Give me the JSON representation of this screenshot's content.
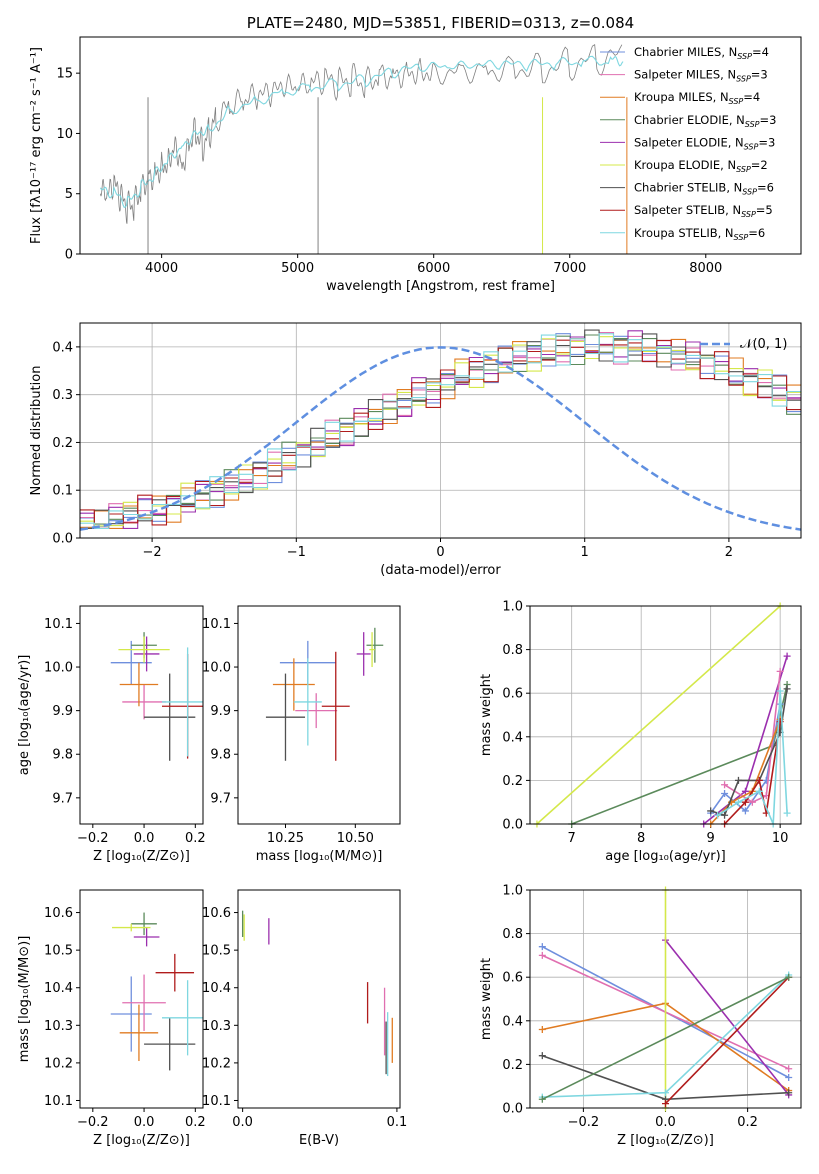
{
  "colors": {
    "Chabrier MILES": "#6f8fdd",
    "Salpeter MILES": "#e06fb0",
    "Kroupa MILES": "#e07b22",
    "Chabrier ELODIE": "#5b8a5b",
    "Salpeter ELODIE": "#9b2fae",
    "Kroupa ELODIE": "#d4e84a",
    "Chabrier STELIB": "#505050",
    "Salpeter STELIB": "#b01c1c",
    "Kroupa STELIB": "#7fd7e0"
  },
  "models": [
    "Chabrier MILES",
    "Salpeter MILES",
    "Kroupa MILES",
    "Chabrier ELODIE",
    "Salpeter ELODIE",
    "Kroupa ELODIE",
    "Chabrier STELIB",
    "Salpeter STELIB",
    "Kroupa STELIB"
  ],
  "chart_data": [
    {
      "id": "spectrum",
      "type": "line",
      "title": "PLATE=2480, MJD=53851, FIBERID=0313, z=0.084",
      "xlabel": "wavelength [Angstrom, rest frame]",
      "ylabel": "Flux [fλ10⁻¹⁷ erg cm⁻² s⁻¹ A⁻¹]",
      "xlim": [
        3400,
        8700
      ],
      "ylim": [
        0,
        18
      ],
      "xticks": [
        4000,
        5000,
        6000,
        7000,
        8000
      ],
      "yticks": [
        0,
        5,
        10,
        15
      ],
      "grid": false,
      "legend_position": "right",
      "legend": [
        {
          "model": "Chabrier MILES",
          "label": "Chabrier MILES, N",
          "sub": "SSP",
          "eq": "=4"
        },
        {
          "model": "Salpeter MILES",
          "label": "Salpeter MILES, N",
          "sub": "SSP",
          "eq": "=3"
        },
        {
          "model": "Kroupa MILES",
          "label": "Kroupa MILES, N",
          "sub": "SSP",
          "eq": "=4"
        },
        {
          "model": "Chabrier ELODIE",
          "label": "Chabrier ELODIE, N",
          "sub": "SSP",
          "eq": "=3"
        },
        {
          "model": "Salpeter ELODIE",
          "label": "Salpeter ELODIE, N",
          "sub": "SSP",
          "eq": "=3"
        },
        {
          "model": "Kroupa ELODIE",
          "label": "Kroupa ELODIE, N",
          "sub": "SSP",
          "eq": "=2"
        },
        {
          "model": "Chabrier STELIB",
          "label": "Chabrier STELIB, N",
          "sub": "SSP",
          "eq": "=6"
        },
        {
          "model": "Salpeter STELIB",
          "label": "Salpeter STELIB, N",
          "sub": "SSP",
          "eq": "=5"
        },
        {
          "model": "Kroupa STELIB",
          "label": "Kroupa STELIB, N",
          "sub": "SSP",
          "eq": "=6"
        }
      ],
      "series": [
        {
          "name": "data",
          "color": "#808080",
          "x": [
            3550,
            3600,
            3650,
            3700,
            3750,
            3800,
            3850,
            3900,
            3950,
            4000,
            4050,
            4100,
            4150,
            4200,
            4250,
            4300,
            4350,
            4400,
            4500,
            4600,
            4700,
            4800,
            4900,
            5000,
            5100,
            5200,
            5300,
            5400,
            5500,
            5600,
            5700,
            5800,
            5900,
            6000,
            6200,
            6400,
            6600,
            6800,
            7000,
            7200,
            7400
          ],
          "y": [
            5.0,
            4.5,
            5.5,
            4.5,
            3.8,
            4.2,
            5.5,
            6.5,
            6.8,
            7.5,
            8.0,
            9.5,
            7.5,
            9.5,
            10.5,
            9.0,
            10.0,
            11.0,
            12.0,
            12.5,
            12.8,
            13.0,
            13.5,
            13.5,
            13.8,
            14.2,
            14.0,
            14.5,
            14.3,
            15.0,
            15.0,
            15.3,
            15.5,
            15.3,
            15.6,
            15.5,
            15.7,
            15.5,
            15.8,
            16.0,
            16.2
          ]
        },
        {
          "name": "model",
          "color": "#7fd7e0",
          "x": [
            3550,
            3650,
            3750,
            3850,
            3950,
            4050,
            4150,
            4250,
            4350,
            4500,
            4700,
            4900,
            5100,
            5300,
            5500,
            5700,
            5900,
            6100,
            6300,
            6500,
            6700,
            6900,
            7100,
            7300,
            7400
          ],
          "y": [
            5.2,
            5.0,
            4.2,
            5.6,
            6.7,
            8.0,
            9.0,
            10.2,
            10.4,
            12.0,
            12.8,
            13.5,
            13.9,
            14.1,
            14.4,
            15.0,
            15.4,
            15.4,
            15.5,
            15.6,
            15.6,
            15.7,
            15.9,
            16.0,
            16.1
          ]
        }
      ]
    },
    {
      "id": "residuals",
      "type": "bar",
      "xlabel": "(data-model)/error",
      "ylabel": "Normed distribution",
      "xlim": [
        -2.5,
        2.5
      ],
      "ylim": [
        0,
        0.45
      ],
      "xticks": [
        -2,
        -1,
        0,
        1,
        2
      ],
      "yticks": [
        0.0,
        0.1,
        0.2,
        0.3,
        0.4
      ],
      "grid": true,
      "legend": [
        {
          "label": "𝒩(0, 1)",
          "style": "dashed"
        }
      ],
      "bin_width": 0.1,
      "bin_start": -2.5,
      "values": [
        0.03,
        0.03,
        0.04,
        0.05,
        0.055,
        0.06,
        0.07,
        0.08,
        0.09,
        0.1,
        0.11,
        0.12,
        0.135,
        0.15,
        0.165,
        0.18,
        0.195,
        0.21,
        0.225,
        0.24,
        0.255,
        0.27,
        0.285,
        0.3,
        0.31,
        0.325,
        0.34,
        0.35,
        0.36,
        0.37,
        0.38,
        0.385,
        0.39,
        0.395,
        0.4,
        0.4,
        0.4,
        0.4,
        0.4,
        0.395,
        0.39,
        0.385,
        0.375,
        0.365,
        0.355,
        0.34,
        0.33,
        0.32,
        0.305,
        0.29
      ]
    },
    {
      "id": "age_vs_Z",
      "type": "scatter",
      "xlabel": "Z [log₁₀(Z/Z⊙)]",
      "ylabel": "age  [log₁₀(age/yr)]",
      "xlim": [
        -0.25,
        0.23
      ],
      "ylim": [
        9.64,
        10.14
      ],
      "xticks": [
        -0.2,
        0.0,
        0.2
      ],
      "xtick_labels": [
        "−0.2",
        "0.0",
        "0.2"
      ],
      "yticks": [
        9.7,
        9.8,
        9.9,
        10.0,
        10.1
      ],
      "points": [
        {
          "model": "Chabrier MILES",
          "x": -0.05,
          "y": 10.01,
          "xerr": 0.16,
          "yerr": 0.1
        },
        {
          "model": "Salpeter MILES",
          "x": 0.0,
          "y": 9.92,
          "xerr": 0.17,
          "yerr": 0.08
        },
        {
          "model": "Kroupa MILES",
          "x": -0.02,
          "y": 9.96,
          "xerr": 0.15,
          "yerr": 0.1
        },
        {
          "model": "Chabrier ELODIE",
          "x": 0.0,
          "y": 10.05,
          "xerr": 0.1,
          "yerr": 0.06
        },
        {
          "model": "Salpeter ELODIE",
          "x": 0.01,
          "y": 10.03,
          "xerr": 0.1,
          "yerr": 0.08
        },
        {
          "model": "Kroupa ELODIE",
          "x": 0.0,
          "y": 10.04,
          "xerr": 0.2,
          "yerr": 0.06
        },
        {
          "model": "Chabrier STELIB",
          "x": 0.1,
          "y": 9.885,
          "xerr": 0.2,
          "yerr": 0.2
        },
        {
          "model": "Salpeter STELIB",
          "x": 0.17,
          "y": 9.91,
          "xerr": 0.2,
          "yerr": 0.24
        },
        {
          "model": "Kroupa STELIB",
          "x": 0.17,
          "y": 9.92,
          "xerr": 0.2,
          "yerr": 0.25
        }
      ]
    },
    {
      "id": "age_vs_mass",
      "type": "scatter",
      "xlabel": "mass [log₁₀(M/M⊙)]",
      "xlim": [
        10.08,
        10.66
      ],
      "ylim": [
        9.64,
        10.14
      ],
      "xticks": [
        10.25,
        10.5
      ],
      "xtick_labels": [
        "10.25",
        "10.50"
      ],
      "yticks": [
        9.7,
        9.8,
        9.9,
        10.0,
        10.1
      ],
      "points": [
        {
          "model": "Chabrier MILES",
          "x": 10.33,
          "y": 10.01,
          "xerr": 0.2,
          "yerr": 0.1
        },
        {
          "model": "Salpeter MILES",
          "x": 10.36,
          "y": 9.9,
          "xerr": 0.15,
          "yerr": 0.08
        },
        {
          "model": "Kroupa MILES",
          "x": 10.28,
          "y": 9.96,
          "xerr": 0.15,
          "yerr": 0.12
        },
        {
          "model": "Chabrier ELODIE",
          "x": 10.57,
          "y": 10.05,
          "xerr": 0.06,
          "yerr": 0.08
        },
        {
          "model": "Salpeter ELODIE",
          "x": 10.53,
          "y": 10.03,
          "xerr": 0.05,
          "yerr": 0.1
        },
        {
          "model": "Kroupa ELODIE",
          "x": 10.56,
          "y": 10.04,
          "xerr": 0.02,
          "yerr": 0.08
        },
        {
          "model": "Chabrier STELIB",
          "x": 10.25,
          "y": 9.885,
          "xerr": 0.14,
          "yerr": 0.2
        },
        {
          "model": "Salpeter STELIB",
          "x": 10.43,
          "y": 9.91,
          "xerr": 0.1,
          "yerr": 0.25
        },
        {
          "model": "Kroupa STELIB",
          "x": 10.33,
          "y": 9.92,
          "xerr": 0.1,
          "yerr": 0.2
        }
      ]
    },
    {
      "id": "mass_weight_vs_age",
      "type": "line",
      "xlabel": "age  [log₁₀(age/yr)]",
      "ylabel": "mass weight",
      "xlim": [
        6.4,
        10.3
      ],
      "ylim": [
        0,
        1.0
      ],
      "xticks": [
        7,
        8,
        9,
        10
      ],
      "yticks": [
        0.0,
        0.2,
        0.4,
        0.6,
        0.8,
        1.0
      ],
      "grid": true,
      "series": [
        {
          "model": "Kroupa ELODIE",
          "x": [
            6.5,
            10.0
          ],
          "y": [
            0.0,
            1.0
          ]
        },
        {
          "model": "Chabrier ELODIE",
          "x": [
            7.0,
            9.9,
            10.1
          ],
          "y": [
            0.0,
            0.36,
            0.64
          ]
        },
        {
          "model": "Salpeter ELODIE",
          "x": [
            8.9,
            9.5,
            10.1
          ],
          "y": [
            0.0,
            0.15,
            0.77
          ]
        },
        {
          "model": "Chabrier MILES",
          "x": [
            9.0,
            9.2,
            9.5,
            9.8,
            10.0
          ],
          "y": [
            0.05,
            0.14,
            0.06,
            0.2,
            0.55
          ]
        },
        {
          "model": "Salpeter MILES",
          "x": [
            9.2,
            9.6,
            9.8,
            10.0
          ],
          "y": [
            0.18,
            0.1,
            0.13,
            0.7
          ]
        },
        {
          "model": "Kroupa MILES",
          "x": [
            9.0,
            9.3,
            9.6,
            10.0
          ],
          "y": [
            0.0,
            0.1,
            0.15,
            0.48
          ]
        },
        {
          "model": "Chabrier STELIB",
          "x": [
            9.0,
            9.2,
            9.4,
            9.7,
            10.0,
            10.1
          ],
          "y": [
            0.06,
            0.04,
            0.2,
            0.2,
            0.42,
            0.62
          ]
        },
        {
          "model": "Salpeter STELIB",
          "x": [
            9.2,
            9.5,
            9.7,
            9.8,
            10.0
          ],
          "y": [
            0.0,
            0.1,
            0.2,
            0.05,
            0.47
          ]
        },
        {
          "model": "Kroupa STELIB",
          "x": [
            9.1,
            9.4,
            9.7,
            9.9,
            10.0,
            10.1
          ],
          "y": [
            0.04,
            0.1,
            0.15,
            0.0,
            0.61,
            0.05
          ]
        }
      ]
    },
    {
      "id": "mass_vs_Z",
      "type": "scatter",
      "xlabel": "Z [log₁₀(Z/Z⊙)]",
      "ylabel": "mass [log₁₀(M/M⊙)]",
      "xlim": [
        -0.25,
        0.23
      ],
      "ylim": [
        10.08,
        10.66
      ],
      "xticks": [
        -0.2,
        0.0,
        0.2
      ],
      "xtick_labels": [
        "−0.2",
        "0.0",
        "0.2"
      ],
      "yticks": [
        10.1,
        10.2,
        10.3,
        10.4,
        10.5,
        10.6
      ],
      "points": [
        {
          "model": "Chabrier MILES",
          "x": -0.05,
          "y": 10.33,
          "xerr": 0.16,
          "yerr": 0.2
        },
        {
          "model": "Salpeter MILES",
          "x": 0.0,
          "y": 10.36,
          "xerr": 0.17,
          "yerr": 0.15
        },
        {
          "model": "Kroupa MILES",
          "x": -0.02,
          "y": 10.28,
          "xerr": 0.15,
          "yerr": 0.15
        },
        {
          "model": "Chabrier ELODIE",
          "x": 0.0,
          "y": 10.57,
          "xerr": 0.1,
          "yerr": 0.06
        },
        {
          "model": "Salpeter ELODIE",
          "x": 0.01,
          "y": 10.535,
          "xerr": 0.1,
          "yerr": 0.05
        },
        {
          "model": "Kroupa ELODIE",
          "x": -0.05,
          "y": 10.56,
          "xerr": 0.15,
          "yerr": 0.02
        },
        {
          "model": "Chabrier STELIB",
          "x": 0.1,
          "y": 10.25,
          "xerr": 0.2,
          "yerr": 0.14
        },
        {
          "model": "Salpeter STELIB",
          "x": 0.12,
          "y": 10.44,
          "xerr": 0.15,
          "yerr": 0.1
        },
        {
          "model": "Kroupa STELIB",
          "x": 0.17,
          "y": 10.32,
          "xerr": 0.2,
          "yerr": 0.2
        }
      ]
    },
    {
      "id": "mass_vs_EBV",
      "type": "scatter",
      "xlabel": "E(B-V)",
      "xlim": [
        -0.003,
        0.102
      ],
      "ylim": [
        10.08,
        10.66
      ],
      "xticks": [
        0.0,
        0.1
      ],
      "xtick_labels": [
        "0.0",
        "0.1"
      ],
      "yticks": [
        10.1,
        10.2,
        10.3,
        10.4,
        10.5,
        10.6
      ],
      "points": [
        {
          "model": "Chabrier ELODIE",
          "x": 0.0,
          "y": 10.57,
          "xerr": 0,
          "yerr": 0.07
        },
        {
          "model": "Salpeter ELODIE",
          "x": 0.017,
          "y": 10.55,
          "xerr": 0,
          "yerr": 0.07
        },
        {
          "model": "Kroupa ELODIE",
          "x": 0.001,
          "y": 10.56,
          "xerr": 0,
          "yerr": 0.07
        },
        {
          "model": "Salpeter STELIB",
          "x": 0.081,
          "y": 10.36,
          "xerr": 0,
          "yerr": 0.11
        },
        {
          "model": "Salpeter MILES",
          "x": 0.092,
          "y": 10.31,
          "xerr": 0,
          "yerr": 0.18
        },
        {
          "model": "Chabrier STELIB",
          "x": 0.093,
          "y": 10.24,
          "xerr": 0,
          "yerr": 0.14
        },
        {
          "model": "Kroupa STELIB",
          "x": 0.094,
          "y": 10.25,
          "xerr": 0,
          "yerr": 0.17
        },
        {
          "model": "Kroupa MILES",
          "x": 0.097,
          "y": 10.26,
          "xerr": 0,
          "yerr": 0.12
        }
      ]
    },
    {
      "id": "mass_weight_vs_Z",
      "type": "line",
      "xlabel": "Z [log₁₀(Z/Z⊙)]",
      "ylabel": "mass weight",
      "xlim": [
        -0.33,
        0.33
      ],
      "ylim": [
        0,
        1.0
      ],
      "xticks": [
        -0.2,
        0.0,
        0.2
      ],
      "xtick_labels": [
        "−0.2",
        "0.0",
        "0.2"
      ],
      "yticks": [
        0.0,
        0.2,
        0.4,
        0.6,
        0.8,
        1.0
      ],
      "grid": true,
      "series": [
        {
          "model": "Chabrier MILES",
          "x": [
            -0.3,
            0.3
          ],
          "y": [
            0.74,
            0.14
          ]
        },
        {
          "model": "Salpeter MILES",
          "x": [
            -0.3,
            0.3
          ],
          "y": [
            0.7,
            0.18
          ]
        },
        {
          "model": "Kroupa MILES",
          "x": [
            -0.3,
            0.0,
            0.3
          ],
          "y": [
            0.36,
            0.48,
            0.08
          ]
        },
        {
          "model": "Salpeter ELODIE",
          "x": [
            0.0,
            0.3
          ],
          "y": [
            0.77,
            0.06
          ]
        },
        {
          "model": "Kroupa ELODIE",
          "x": [
            0.0,
            0.0
          ],
          "y": [
            0.0,
            1.0
          ]
        },
        {
          "model": "Chabrier STELIB",
          "x": [
            -0.3,
            0.0,
            0.3
          ],
          "y": [
            0.24,
            0.04,
            0.07
          ]
        },
        {
          "model": "Salpeter STELIB",
          "x": [
            0.0,
            0.3
          ],
          "y": [
            0.02,
            0.6
          ]
        },
        {
          "model": "Kroupa STELIB",
          "x": [
            -0.3,
            0.0,
            0.3
          ],
          "y": [
            0.05,
            0.07,
            0.61
          ]
        },
        {
          "model": "Chabrier ELODIE",
          "x": [
            -0.3,
            0.3
          ],
          "y": [
            0.04,
            0.6
          ]
        }
      ]
    }
  ]
}
